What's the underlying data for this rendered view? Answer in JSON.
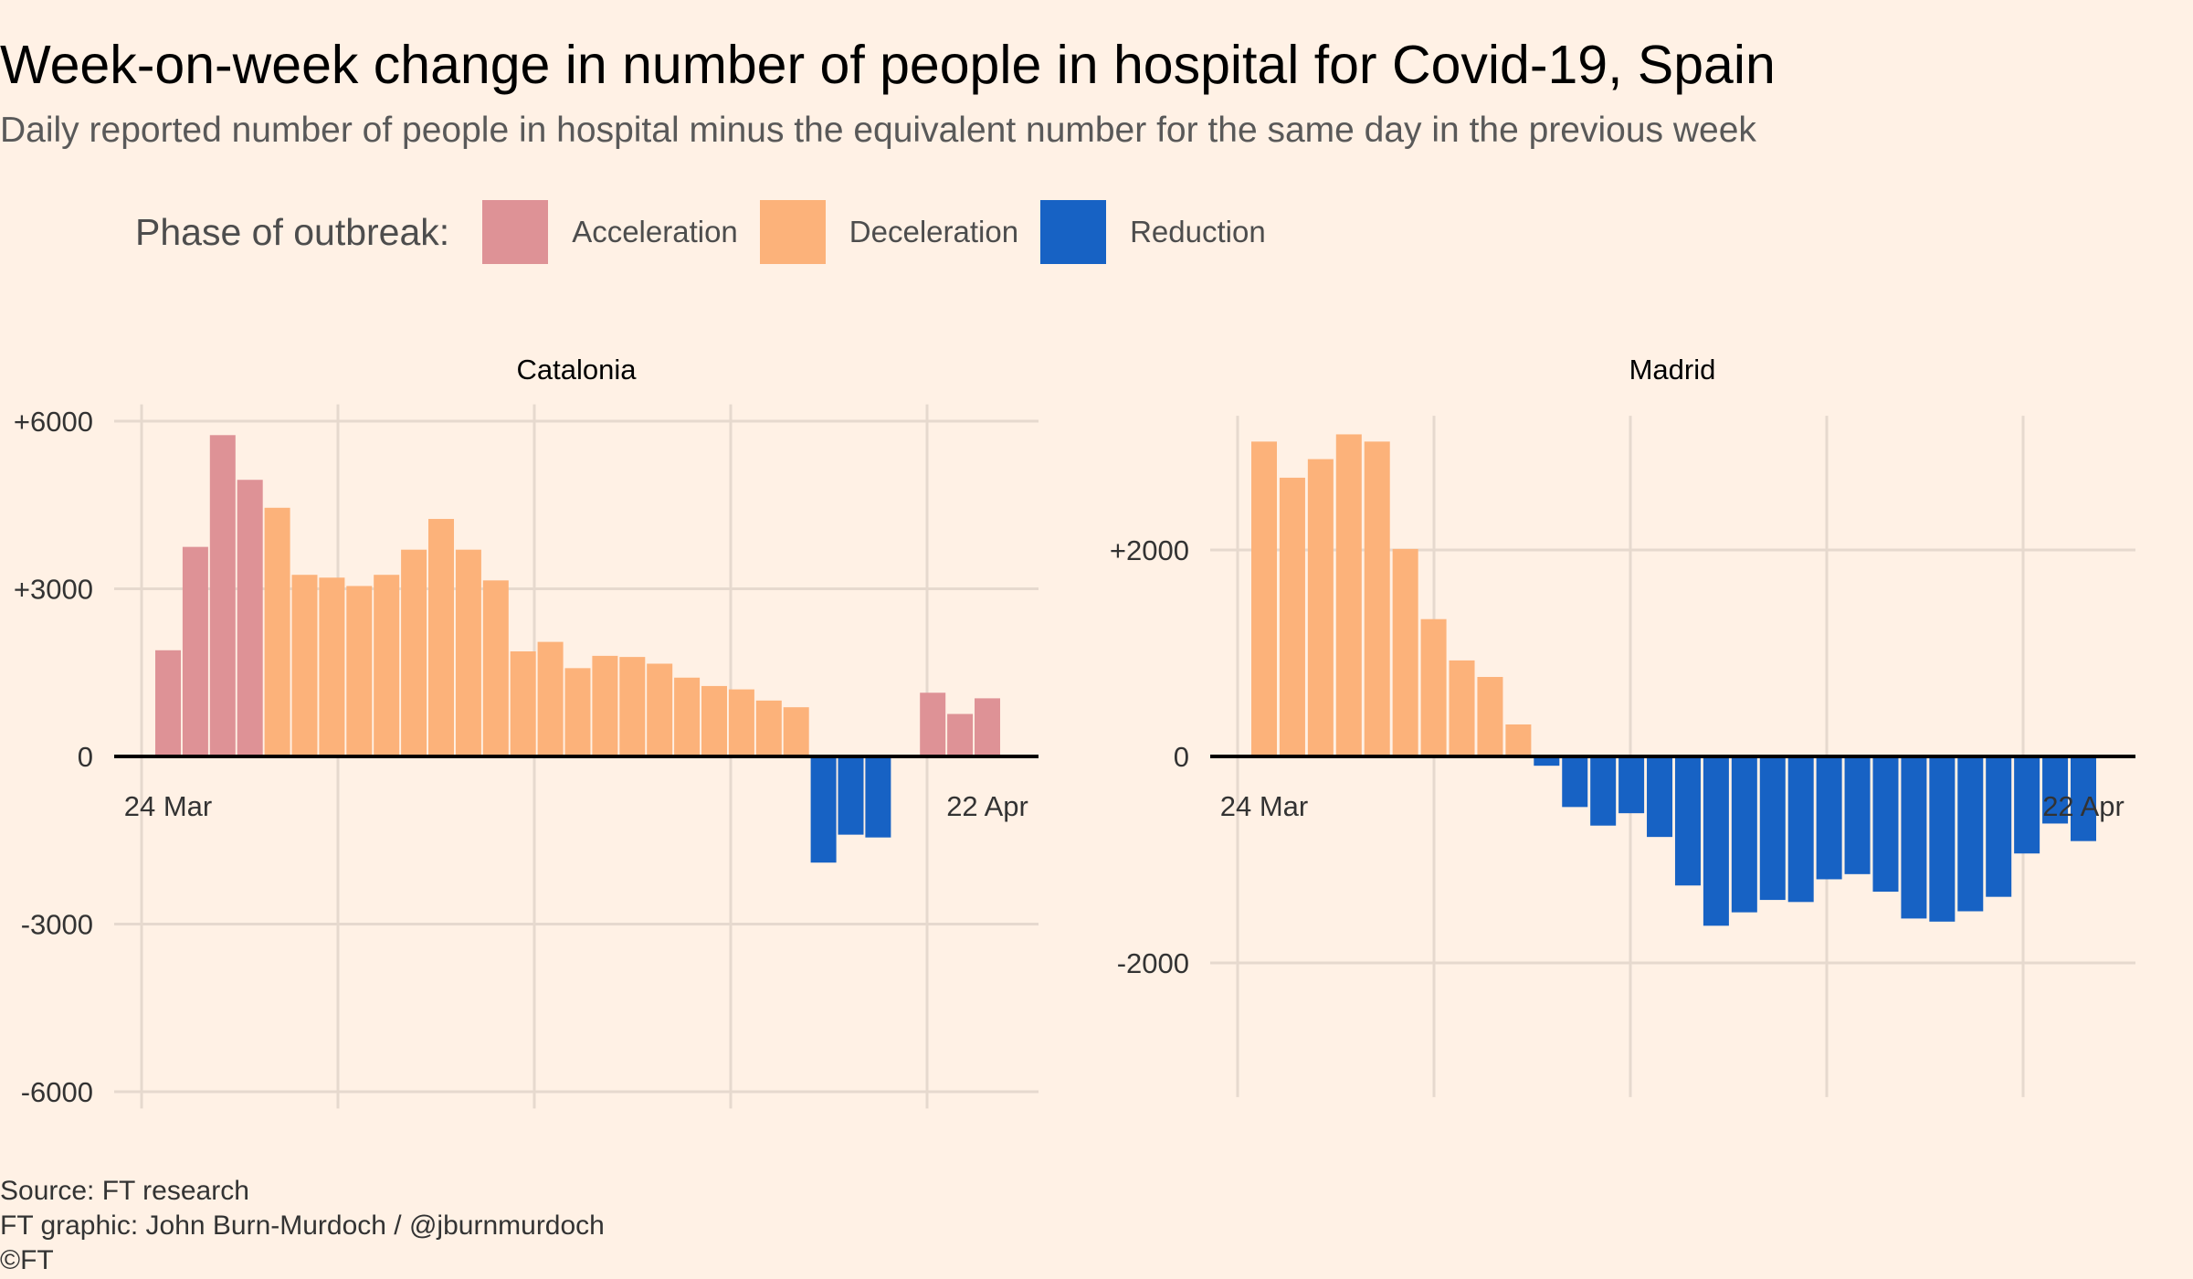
{
  "title": "Week-on-week change in number of people in hospital for Covid-19, Spain",
  "subtitle": "Daily reported number of people in hospital minus the equivalent number for the same day in the previous week",
  "legend": {
    "title": "Phase of outbreak:",
    "items": [
      {
        "key": "A",
        "label": "Acceleration",
        "color": "#DE9296"
      },
      {
        "key": "D",
        "label": "Deceleration",
        "color": "#FCB27A"
      },
      {
        "key": "R",
        "label": "Reduction",
        "color": "#1762C4"
      }
    ]
  },
  "footer": {
    "source": "Source: FT research",
    "credit": "FT graphic: John Burn-Murdoch / @jburnmurdoch",
    "copyright": "©FT"
  },
  "chart_data": [
    {
      "type": "bar",
      "title": "Catalonia",
      "x_start": "24 Mar",
      "x_end": "22 Apr",
      "xtick_labels": [
        "24 Mar",
        "22 Apr"
      ],
      "ylim": [
        -6300,
        6300
      ],
      "yticks": [
        -6000,
        -3000,
        0,
        3000,
        6000
      ],
      "ytick_labels": [
        "-6000",
        "-3000",
        "0",
        "+3000",
        "+6000"
      ],
      "grid": true,
      "values": [
        1900,
        3750,
        5750,
        4950,
        4450,
        3250,
        3200,
        3050,
        3250,
        3700,
        4250,
        3700,
        3150,
        1880,
        2050,
        1580,
        1800,
        1780,
        1660,
        1410,
        1260,
        1200,
        1000,
        880,
        -1900,
        -1400,
        -1450,
        null,
        1140,
        760,
        1040
      ],
      "phases": [
        "A",
        "A",
        "A",
        "A",
        "D",
        "D",
        "D",
        "D",
        "D",
        "D",
        "D",
        "D",
        "D",
        "D",
        "D",
        "D",
        "D",
        "D",
        "D",
        "D",
        "D",
        "D",
        "D",
        "D",
        "R",
        "R",
        "R",
        null,
        "A",
        "A",
        "A"
      ]
    },
    {
      "type": "bar",
      "title": "Madrid",
      "x_start": "24 Mar",
      "x_end": "22 Apr",
      "xtick_labels": [
        "24 Mar",
        "22 Apr"
      ],
      "ylim": [
        -3300,
        3300
      ],
      "yticks": [
        -2000,
        0,
        2000
      ],
      "ytick_labels": [
        "-2000",
        "0",
        "+2000"
      ],
      "grid": true,
      "values": [
        3050,
        2700,
        2880,
        3120,
        3050,
        2010,
        1330,
        930,
        770,
        310,
        -90,
        -490,
        -670,
        -550,
        -780,
        -1250,
        -1640,
        -1510,
        -1390,
        -1410,
        -1190,
        -1140,
        -1310,
        -1570,
        -1600,
        -1500,
        -1360,
        -940,
        -650,
        -820
      ],
      "phases": [
        "D",
        "D",
        "D",
        "D",
        "D",
        "D",
        "D",
        "D",
        "D",
        "D",
        "R",
        "R",
        "R",
        "R",
        "R",
        "R",
        "R",
        "R",
        "R",
        "R",
        "R",
        "R",
        "R",
        "R",
        "R",
        "R",
        "R",
        "R",
        "R",
        "R"
      ]
    }
  ]
}
